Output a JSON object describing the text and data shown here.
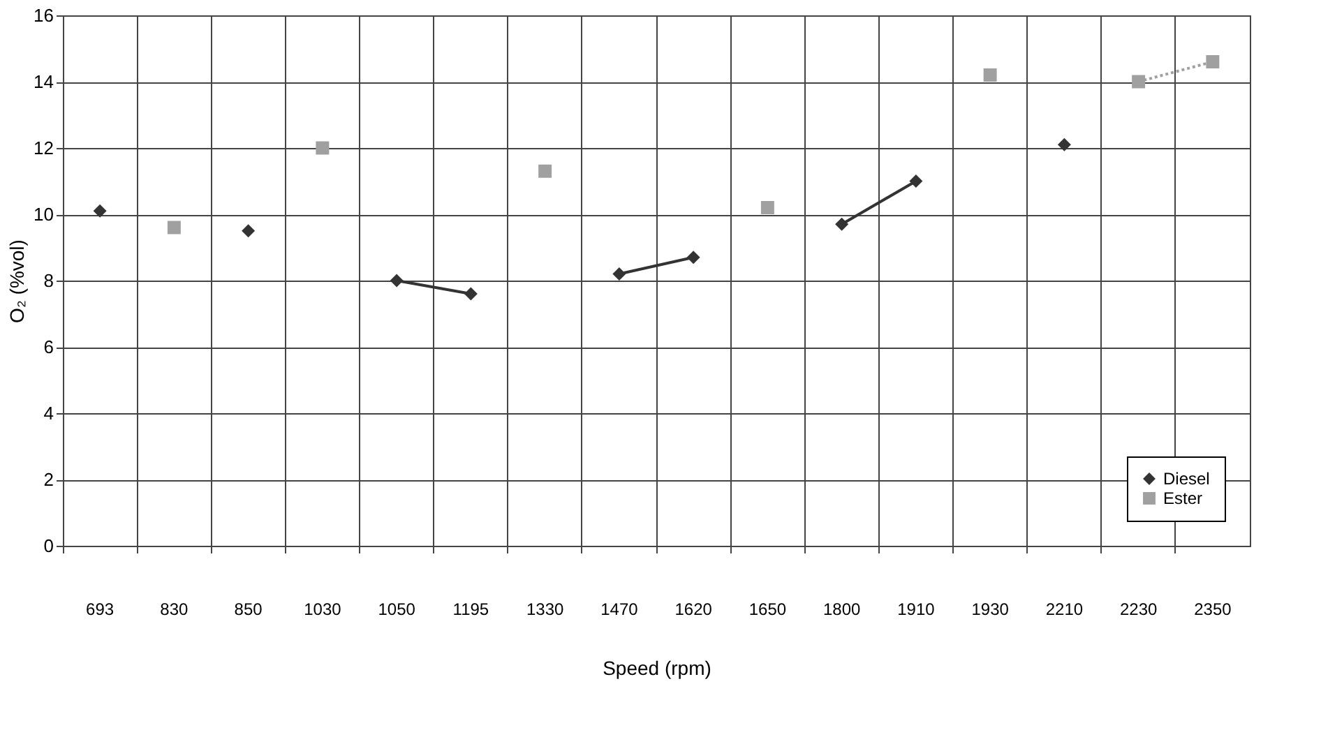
{
  "chart_data": {
    "type": "line",
    "xlabel": "Speed (rpm)",
    "ylabel": "O₂ (%vol)",
    "categories": [
      "693",
      "830",
      "850",
      "1030",
      "1050",
      "1195",
      "1330",
      "1470",
      "1620",
      "1650",
      "1800",
      "1910",
      "1930",
      "2210",
      "2230",
      "2350"
    ],
    "series": [
      {
        "name": "Diesel",
        "color": "#333333",
        "marker": "diamond",
        "line_style": "solid",
        "values": [
          10.1,
          null,
          9.5,
          null,
          8.0,
          7.6,
          null,
          8.2,
          8.7,
          null,
          9.7,
          11.0,
          null,
          12.1,
          null,
          null
        ]
      },
      {
        "name": "Ester",
        "color": "#a0a0a0",
        "marker": "square",
        "line_style": "dotted",
        "values": [
          null,
          9.6,
          null,
          12.0,
          null,
          null,
          11.3,
          null,
          null,
          10.2,
          null,
          null,
          14.2,
          null,
          14.0,
          14.6
        ]
      }
    ],
    "ylim": [
      0,
      16
    ],
    "yticks": [
      0,
      2,
      4,
      6,
      8,
      10,
      12,
      14,
      16
    ],
    "grid": true,
    "legend": "bottom right"
  }
}
